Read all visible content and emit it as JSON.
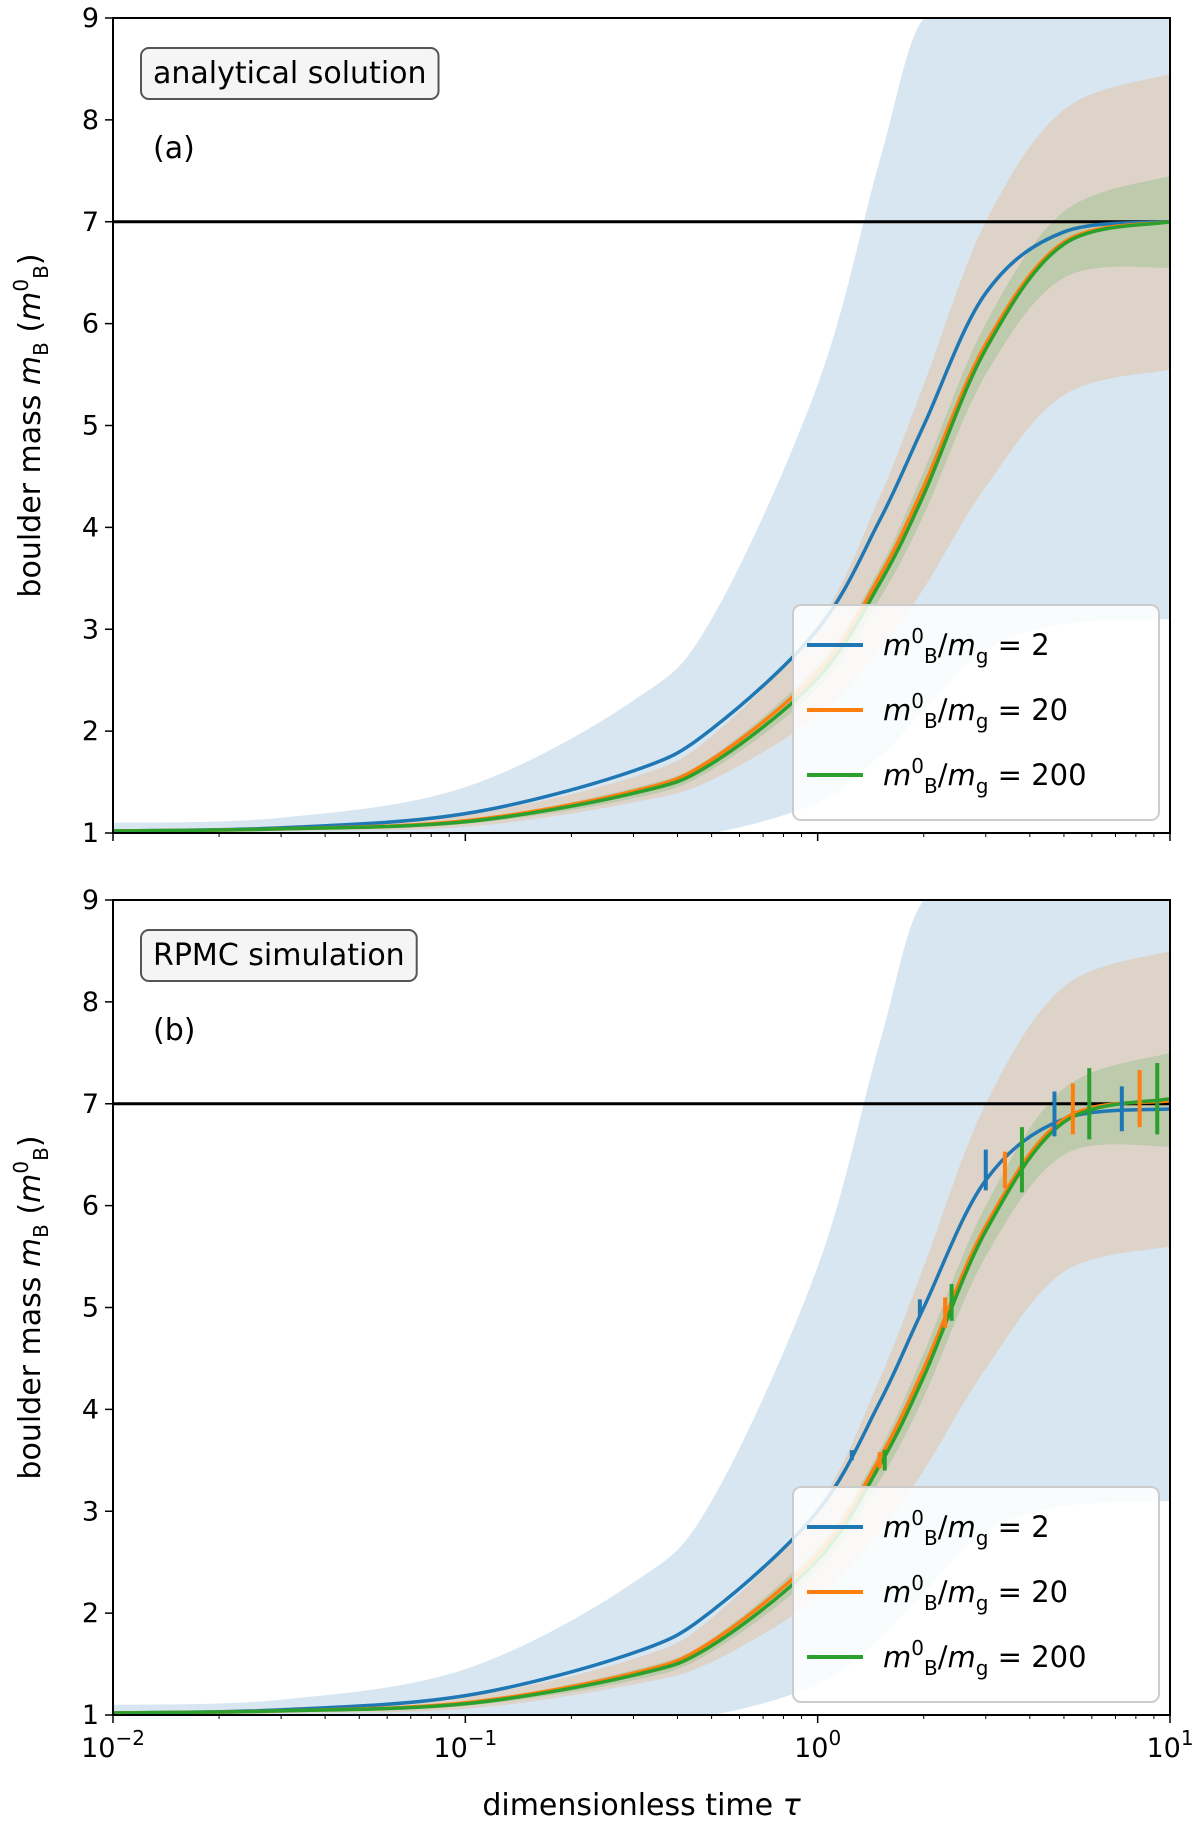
{
  "chart_data": [
    {
      "type": "line",
      "panel": "(a)",
      "title_box": "analytical solution",
      "xlabel": "",
      "ylabel": "boulder mass m_B (m_B^0)",
      "xscale": "log",
      "xlim": [
        0.01,
        10
      ],
      "ylim": [
        1,
        9
      ],
      "xticks": [
        "10^-2",
        "10^-1",
        "10^0",
        "10^1"
      ],
      "yticks": [
        1,
        2,
        3,
        4,
        5,
        6,
        7,
        8,
        9
      ],
      "reference_line": {
        "y": 7,
        "color": "#000000"
      },
      "series": [
        {
          "name": "m_B^0/m_g = 2",
          "color": "#1f77b4",
          "x": [
            0.01,
            0.03,
            0.1,
            0.3,
            0.5,
            1.0,
            1.5,
            2.0,
            3.0,
            5.0,
            10
          ],
          "y": [
            1.02,
            1.05,
            1.19,
            1.61,
            2.02,
            3.0,
            4.07,
            5.0,
            6.3,
            6.9,
            7.0
          ],
          "band_lower": [
            1.0,
            1.0,
            1.0,
            1.0,
            1.0,
            1.3,
            1.75,
            2.2,
            2.8,
            3.05,
            3.1
          ],
          "band_upper": [
            1.1,
            1.15,
            1.45,
            2.3,
            3.1,
            5.4,
            7.6,
            9.0,
            9.0,
            9.0,
            9.0
          ]
        },
        {
          "name": "m_B^0/m_g = 20",
          "color": "#ff7f0e",
          "x": [
            0.01,
            0.03,
            0.1,
            0.3,
            0.5,
            1.0,
            1.5,
            2.0,
            3.0,
            5.0,
            10
          ],
          "y": [
            1.02,
            1.04,
            1.12,
            1.41,
            1.72,
            2.58,
            3.52,
            4.4,
            5.8,
            6.8,
            7.0
          ],
          "band_lower": [
            1.0,
            1.02,
            1.06,
            1.3,
            1.52,
            2.15,
            2.8,
            3.4,
            4.4,
            5.3,
            5.55
          ],
          "band_upper": [
            1.03,
            1.07,
            1.18,
            1.55,
            1.95,
            3.05,
            4.3,
            5.4,
            7.0,
            8.1,
            8.45
          ]
        },
        {
          "name": "m_B^0/m_g = 200",
          "color": "#2ca02c",
          "x": [
            0.01,
            0.03,
            0.1,
            0.3,
            0.5,
            1.0,
            1.5,
            2.0,
            3.0,
            5.0,
            10
          ],
          "y": [
            1.02,
            1.04,
            1.11,
            1.39,
            1.68,
            2.52,
            3.45,
            4.32,
            5.75,
            6.78,
            7.0
          ],
          "band_lower": [
            1.01,
            1.03,
            1.09,
            1.34,
            1.62,
            2.42,
            3.3,
            4.12,
            5.5,
            6.45,
            6.55
          ],
          "band_upper": [
            1.03,
            1.05,
            1.13,
            1.44,
            1.75,
            2.65,
            3.6,
            4.55,
            6.0,
            7.1,
            7.45
          ]
        }
      ],
      "legend": "lower-right"
    },
    {
      "type": "line",
      "panel": "(b)",
      "title_box": "RPMC simulation",
      "xlabel": "dimensionless time τ",
      "ylabel": "boulder mass m_B (m_B^0)",
      "xscale": "log",
      "xlim": [
        0.01,
        10
      ],
      "ylim": [
        1,
        9
      ],
      "xticks": [
        "10^-2",
        "10^-1",
        "10^0",
        "10^1"
      ],
      "yticks": [
        1,
        2,
        3,
        4,
        5,
        6,
        7,
        8,
        9
      ],
      "reference_line": {
        "y": 7,
        "color": "#000000"
      },
      "series": [
        {
          "name": "m_B^0/m_g = 2",
          "color": "#1f77b4",
          "x": [
            0.01,
            0.03,
            0.1,
            0.3,
            0.5,
            1.0,
            1.5,
            2.0,
            3.0,
            5.0,
            10
          ],
          "y": [
            1.02,
            1.05,
            1.19,
            1.61,
            2.02,
            3.0,
            4.07,
            5.0,
            6.25,
            6.85,
            6.95
          ],
          "band_lower": [
            1.0,
            1.0,
            1.0,
            1.0,
            1.0,
            1.3,
            1.75,
            2.2,
            2.8,
            3.05,
            3.1
          ],
          "band_upper": [
            1.1,
            1.15,
            1.45,
            2.3,
            3.1,
            5.4,
            7.6,
            9.0,
            9.0,
            9.0,
            9.0
          ],
          "errorbars": [
            {
              "x": 1.25,
              "y": 3.55,
              "err": 0.05
            },
            {
              "x": 1.95,
              "y": 5.0,
              "err": 0.08
            },
            {
              "x": 3.0,
              "y": 6.35,
              "err": 0.2
            },
            {
              "x": 4.7,
              "y": 6.9,
              "err": 0.22
            },
            {
              "x": 7.3,
              "y": 6.95,
              "err": 0.22
            }
          ]
        },
        {
          "name": "m_B^0/m_g = 20",
          "color": "#ff7f0e",
          "x": [
            0.01,
            0.03,
            0.1,
            0.3,
            0.5,
            1.0,
            1.5,
            2.0,
            3.0,
            5.0,
            10
          ],
          "y": [
            1.02,
            1.04,
            1.12,
            1.41,
            1.72,
            2.58,
            3.52,
            4.4,
            5.8,
            6.85,
            7.03
          ],
          "band_lower": [
            1.0,
            1.02,
            1.06,
            1.3,
            1.52,
            2.15,
            2.8,
            3.4,
            4.4,
            5.35,
            5.6
          ],
          "band_upper": [
            1.03,
            1.07,
            1.18,
            1.55,
            1.95,
            3.05,
            4.3,
            5.4,
            7.0,
            8.15,
            8.5
          ],
          "errorbars": [
            {
              "x": 1.5,
              "y": 3.5,
              "err": 0.08
            },
            {
              "x": 2.3,
              "y": 4.95,
              "err": 0.15
            },
            {
              "x": 3.4,
              "y": 6.35,
              "err": 0.18
            },
            {
              "x": 5.3,
              "y": 6.95,
              "err": 0.25
            },
            {
              "x": 8.2,
              "y": 7.05,
              "err": 0.28
            }
          ]
        },
        {
          "name": "m_B^0/m_g = 200",
          "color": "#2ca02c",
          "x": [
            0.01,
            0.03,
            0.1,
            0.3,
            0.5,
            1.0,
            1.5,
            2.0,
            3.0,
            5.0,
            10
          ],
          "y": [
            1.02,
            1.04,
            1.11,
            1.39,
            1.68,
            2.52,
            3.45,
            4.32,
            5.75,
            6.82,
            7.05
          ],
          "band_lower": [
            1.01,
            1.03,
            1.09,
            1.34,
            1.62,
            2.42,
            3.3,
            4.12,
            5.5,
            6.5,
            6.58
          ],
          "band_upper": [
            1.03,
            1.05,
            1.13,
            1.44,
            1.75,
            2.65,
            3.6,
            4.55,
            6.0,
            7.15,
            7.5
          ],
          "errorbars": [
            {
              "x": 1.55,
              "y": 3.5,
              "err": 0.1
            },
            {
              "x": 2.4,
              "y": 5.05,
              "err": 0.18
            },
            {
              "x": 3.8,
              "y": 6.45,
              "err": 0.32
            },
            {
              "x": 5.9,
              "y": 7.0,
              "err": 0.35
            },
            {
              "x": 9.2,
              "y": 7.05,
              "err": 0.35
            }
          ]
        }
      ],
      "legend": "lower-right"
    }
  ]
}
